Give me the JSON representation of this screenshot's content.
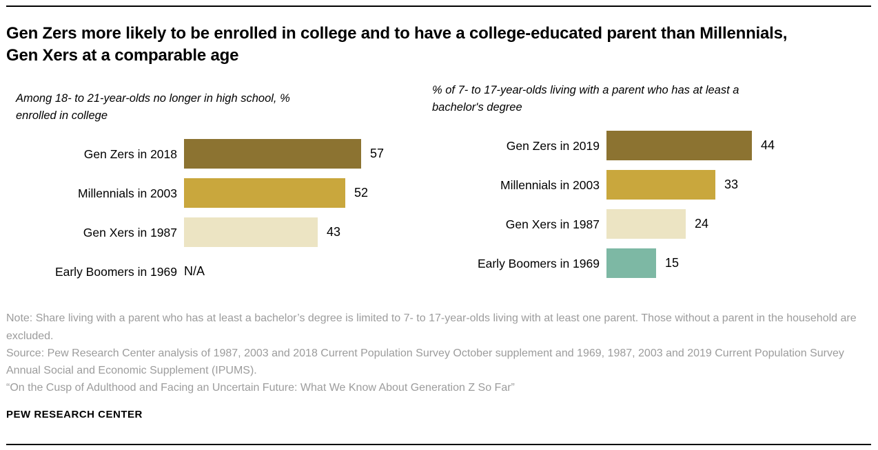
{
  "header": {
    "title": "Gen Zers more likely to be enrolled in college and to have a college-educated parent than Millennials, Gen Xers at a comparable age"
  },
  "chart_data": [
    {
      "type": "bar",
      "title": "Among 18- to 21-year-olds no longer in high school, % enrolled in college",
      "categories": [
        "Gen Zers in 2018",
        "Millennials in 2003",
        "Gen Xers in 1987",
        "Early Boomers in 1969"
      ],
      "values": [
        57,
        52,
        43,
        null
      ],
      "value_labels": [
        "57",
        "52",
        "43",
        "N/A"
      ],
      "colors": [
        "#8c7331",
        "#c9a73d",
        "#ece4c3",
        null
      ],
      "xlabel": "",
      "ylabel": "",
      "xlim": [
        0,
        60
      ],
      "grid": false,
      "legend": "none",
      "orientation": "horizontal"
    },
    {
      "type": "bar",
      "title": "% of 7- to 17-year-olds living with a parent who has at least a bachelor's degree",
      "categories": [
        "Gen Zers in 2019",
        "Millennials in 2003",
        "Gen Xers in 1987",
        "Early Boomers in 1969"
      ],
      "values": [
        44,
        33,
        24,
        15
      ],
      "value_labels": [
        "44",
        "33",
        "24",
        "15"
      ],
      "colors": [
        "#8c7331",
        "#c9a73d",
        "#ece4c3",
        "#7db8a4"
      ],
      "xlabel": "",
      "ylabel": "",
      "xlim": [
        0,
        50
      ],
      "grid": false,
      "legend": "none",
      "orientation": "horizontal"
    }
  ],
  "footer": {
    "note": "Note: Share living with a parent who has at least a bachelor’s degree is limited to 7- to 17-year-olds living with at least one parent. Those without a parent in the household are excluded.",
    "source": "Source: Pew Research Center analysis of 1987, 2003 and 2018 Current Population Survey October supplement and 1969, 1987, 2003 and 2019 Current Population Survey Annual Social and Economic Supplement (IPUMS).",
    "report": "“On the Cusp of Adulthood and Facing an Uncertain Future: What We Know About Generation Z So Far”",
    "brand": "PEW RESEARCH CENTER"
  }
}
